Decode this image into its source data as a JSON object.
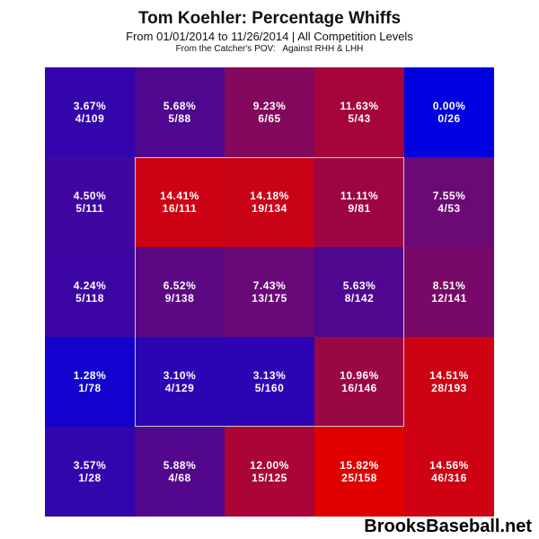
{
  "chart_data": {
    "type": "heatmap",
    "title": "Tom Koehler: Percentage Whiffs",
    "subtitle": "From 01/01/2014 to 11/26/2014 | All Competition Levels",
    "subtitle2": "From the Catcher's POV:   Against RHH & LHH",
    "color_low": "#0000e0",
    "color_high": "#e00000",
    "rows": [
      [
        {
          "pct": "3.67%",
          "frac": "4/109",
          "v": 3.67
        },
        {
          "pct": "5.68%",
          "frac": "5/88",
          "v": 5.68
        },
        {
          "pct": "9.23%",
          "frac": "6/65",
          "v": 9.23
        },
        {
          "pct": "11.63%",
          "frac": "5/43",
          "v": 11.63
        },
        {
          "pct": "0.00%",
          "frac": "0/26",
          "v": 0.0
        }
      ],
      [
        {
          "pct": "4.50%",
          "frac": "5/111",
          "v": 4.5
        },
        {
          "pct": "14.41%",
          "frac": "16/111",
          "v": 14.41
        },
        {
          "pct": "14.18%",
          "frac": "19/134",
          "v": 14.18
        },
        {
          "pct": "11.11%",
          "frac": "9/81",
          "v": 11.11
        },
        {
          "pct": "7.55%",
          "frac": "4/53",
          "v": 7.55
        }
      ],
      [
        {
          "pct": "4.24%",
          "frac": "5/118",
          "v": 4.24
        },
        {
          "pct": "6.52%",
          "frac": "9/138",
          "v": 6.52
        },
        {
          "pct": "7.43%",
          "frac": "13/175",
          "v": 7.43
        },
        {
          "pct": "5.63%",
          "frac": "8/142",
          "v": 5.63
        },
        {
          "pct": "8.51%",
          "frac": "12/141",
          "v": 8.51
        }
      ],
      [
        {
          "pct": "1.28%",
          "frac": "1/78",
          "v": 1.28
        },
        {
          "pct": "3.10%",
          "frac": "4/129",
          "v": 3.1
        },
        {
          "pct": "3.13%",
          "frac": "5/160",
          "v": 3.13
        },
        {
          "pct": "10.96%",
          "frac": "16/146",
          "v": 10.96
        },
        {
          "pct": "14.51%",
          "frac": "28/193",
          "v": 14.51
        }
      ],
      [
        {
          "pct": "3.57%",
          "frac": "1/28",
          "v": 3.57
        },
        {
          "pct": "5.88%",
          "frac": "4/68",
          "v": 5.88
        },
        {
          "pct": "12.00%",
          "frac": "15/125",
          "v": 12.0
        },
        {
          "pct": "15.82%",
          "frac": "25/158",
          "v": 15.82
        },
        {
          "pct": "14.56%",
          "frac": "46/316",
          "v": 14.56
        }
      ]
    ]
  },
  "watermark": "BrooksBaseball.net"
}
